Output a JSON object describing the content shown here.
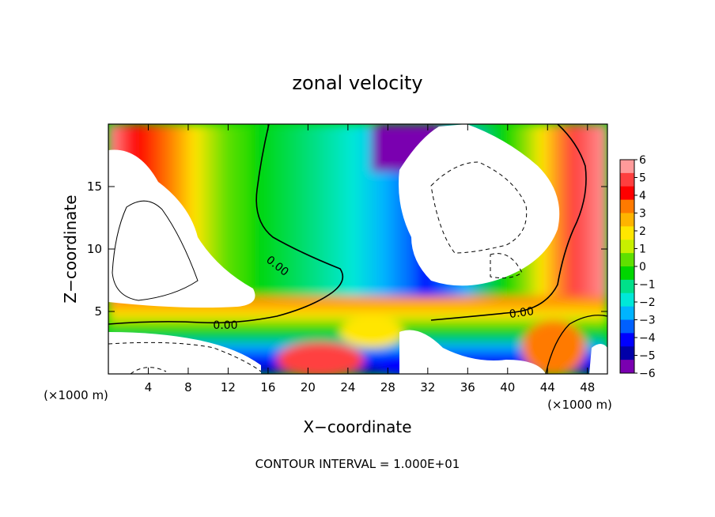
{
  "chart_data": {
    "type": "heatmap",
    "title": "zonal velocity",
    "xlabel": "X−coordinate",
    "ylabel": "Z−coordinate",
    "x_unit_left": "(×1000 m)",
    "x_unit_right": "(×1000 m)",
    "footer": "CONTOUR INTERVAL = 1.000E+01",
    "xlim": [
      0,
      50
    ],
    "ylim": [
      0,
      20
    ],
    "x_ticks": [
      4,
      8,
      12,
      16,
      20,
      24,
      28,
      32,
      36,
      40,
      44,
      48
    ],
    "y_ticks": [
      5,
      10,
      15
    ],
    "contour_label": "0.00",
    "colorbar": {
      "min": -6,
      "max": 6,
      "ticks": [
        6,
        5,
        4,
        3,
        2,
        1,
        0,
        -1,
        -2,
        -3,
        -4,
        -5,
        -6
      ],
      "tick_labels": [
        "6",
        "5",
        "4",
        "3",
        "2",
        "1",
        "0",
        "−1",
        "−2",
        "−3",
        "−4",
        "−5",
        "−6"
      ],
      "colors": [
        "#ff9a9a",
        "#ff3f3f",
        "#ff0000",
        "#ff7a00",
        "#ffb400",
        "#ffe600",
        "#c8f000",
        "#5fe000",
        "#00d600",
        "#00e08a",
        "#00e8d8",
        "#00b4ff",
        "#0060ff",
        "#0000ff",
        "#0000a8",
        "#7a00b0"
      ]
    },
    "regions": [
      {
        "x": [
          12,
          42
        ],
        "z": [
          15,
          20
        ],
        "value": -2
      },
      {
        "x": [
          0,
          8
        ],
        "z": [
          6,
          14
        ],
        "value": 7
      },
      {
        "x": [
          31,
          44
        ],
        "z": [
          7,
          18
        ],
        "value": 7
      },
      {
        "x": [
          0,
          12
        ],
        "z": [
          0,
          3
        ],
        "value": 7
      },
      {
        "x": [
          28,
          32
        ],
        "z": [
          0,
          4
        ],
        "value": 7
      },
      {
        "x": [
          12,
          28
        ],
        "z": [
          3,
          6
        ],
        "value": -3
      },
      {
        "x": [
          20,
          30
        ],
        "z": [
          0,
          3
        ],
        "value": 3
      },
      {
        "x": [
          36,
          48
        ],
        "z": [
          0,
          4
        ],
        "value": -2
      }
    ]
  }
}
